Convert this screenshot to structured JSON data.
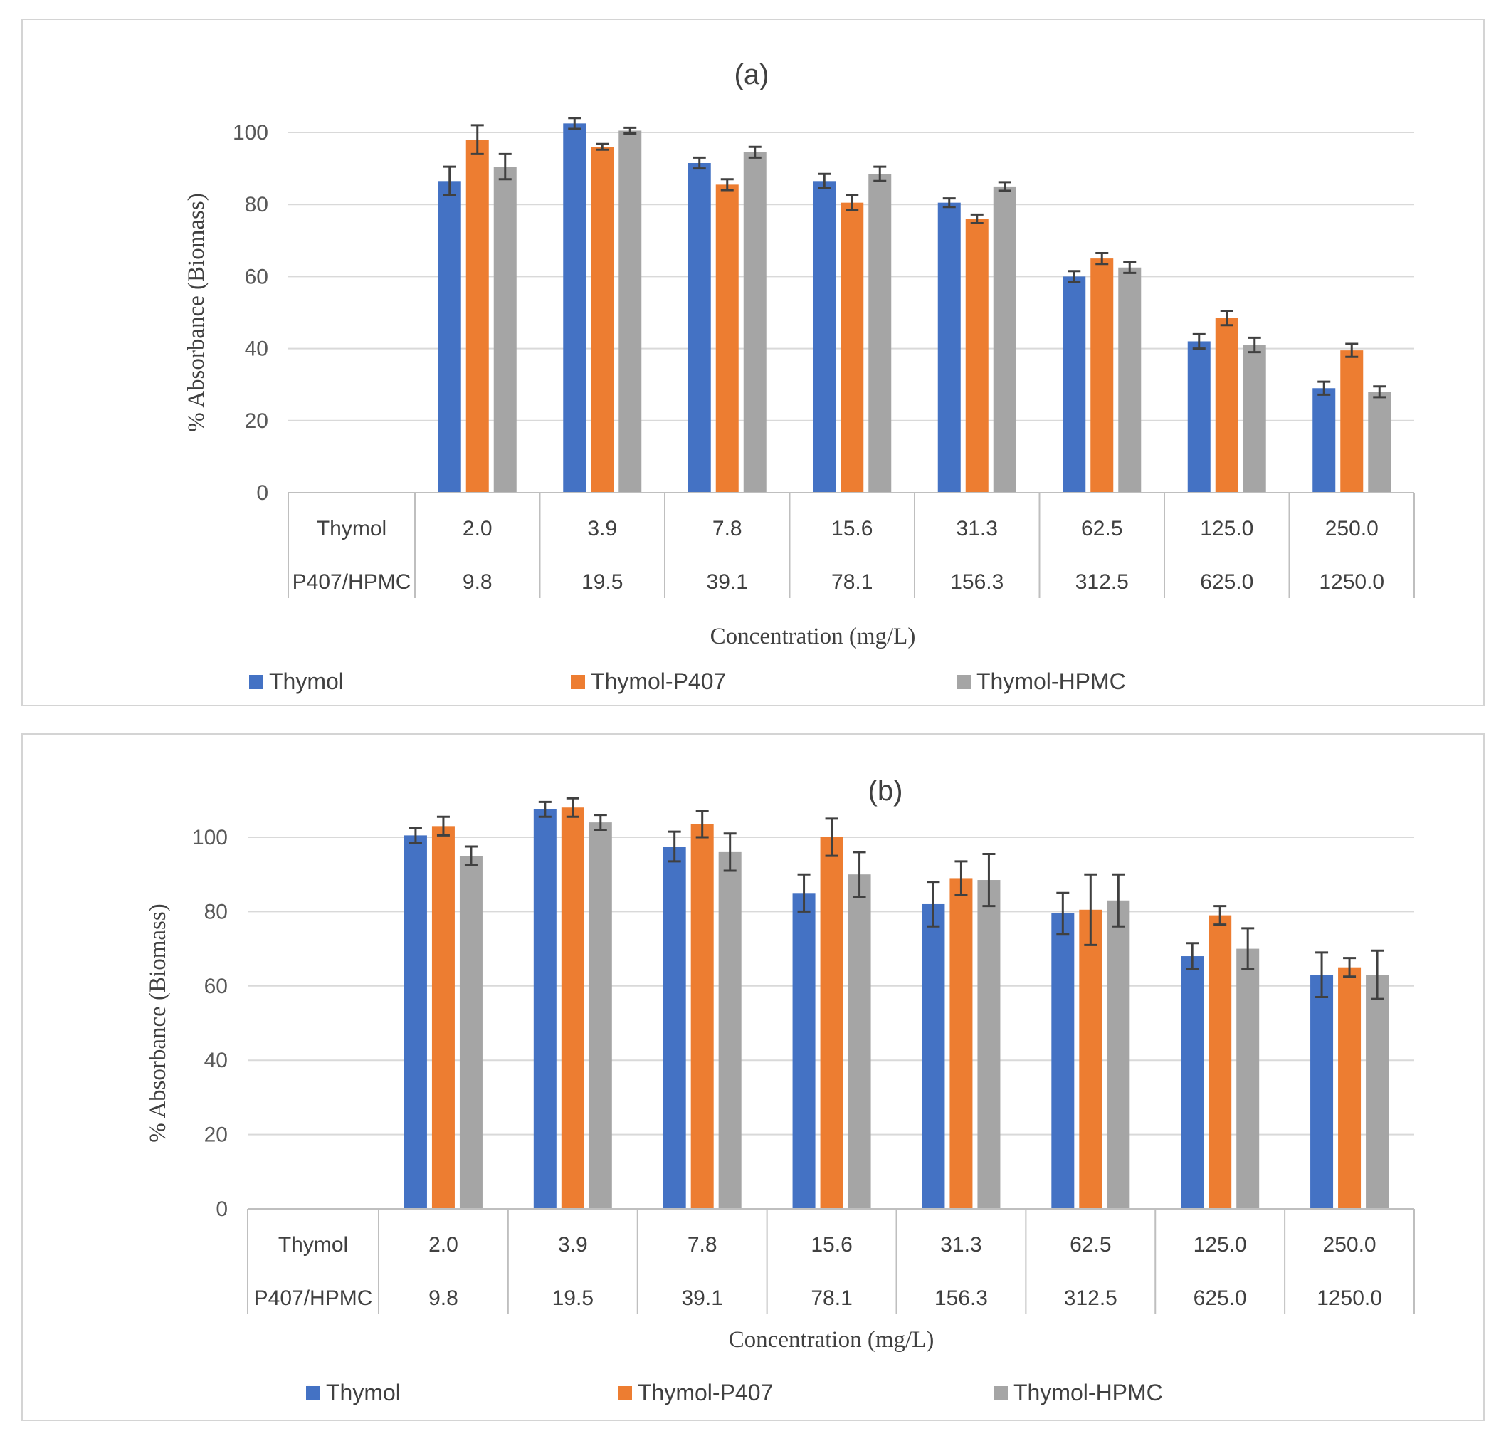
{
  "colors": {
    "thymol": "#4472C4",
    "p407": "#ED7D31",
    "hpmc": "#A5A5A5",
    "grid": "#d9d9d9",
    "error": "#404040"
  },
  "chart_data": [
    {
      "type": "bar",
      "title": "(a)",
      "ylabel": "% Absorbance (Biomass)",
      "xlabel": "Concentration (mg/L)",
      "ylim": [
        0,
        100
      ],
      "yticks": [
        "0",
        "20",
        "40",
        "60",
        "80",
        "100"
      ],
      "row_labels": [
        "Thymol",
        "P407/HPMC"
      ],
      "categories": [
        "2.0",
        "3.9",
        "7.8",
        "15.6",
        "31.3",
        "62.5",
        "125.0",
        "250.0"
      ],
      "categories_secondary": [
        "9.8",
        "19.5",
        "39.1",
        "78.1",
        "156.3",
        "312.5",
        "625.0",
        "1250.0"
      ],
      "legend_position": "bottom",
      "series": [
        {
          "name": "Thymol",
          "values": [
            86.5,
            102.5,
            91.5,
            86.5,
            80.5,
            60.0,
            42.0,
            29.0
          ],
          "errors": [
            4.0,
            1.5,
            1.5,
            2.0,
            1.2,
            1.5,
            2.0,
            1.8
          ]
        },
        {
          "name": "Thymol-P407",
          "values": [
            98.0,
            96.0,
            85.5,
            80.5,
            76.0,
            65.0,
            48.5,
            39.5
          ],
          "errors": [
            4.0,
            0.8,
            1.5,
            2.0,
            1.2,
            1.5,
            2.0,
            1.8
          ]
        },
        {
          "name": "Thymol-HPMC",
          "values": [
            90.5,
            100.5,
            94.5,
            88.5,
            85.0,
            62.5,
            41.0,
            28.0
          ],
          "errors": [
            3.5,
            0.8,
            1.5,
            2.0,
            1.2,
            1.5,
            2.0,
            1.5
          ]
        }
      ]
    },
    {
      "type": "bar",
      "title": "(b)",
      "ylabel": "% Absorbance (Biomass)",
      "xlabel": "Concentration (mg/L)",
      "ylim": [
        0,
        100
      ],
      "yticks": [
        "0",
        "20",
        "40",
        "60",
        "80",
        "100"
      ],
      "row_labels": [
        "Thymol",
        "P407/HPMC"
      ],
      "categories": [
        "2.0",
        "3.9",
        "7.8",
        "15.6",
        "31.3",
        "62.5",
        "125.0",
        "250.0"
      ],
      "categories_secondary": [
        "9.8",
        "19.5",
        "39.1",
        "78.1",
        "156.3",
        "312.5",
        "625.0",
        "1250.0"
      ],
      "legend_position": "bottom",
      "series": [
        {
          "name": "Thymol",
          "values": [
            100.5,
            107.5,
            97.5,
            85.0,
            82.0,
            79.5,
            68.0,
            63.0
          ],
          "errors": [
            2.0,
            2.0,
            4.0,
            5.0,
            6.0,
            5.5,
            3.5,
            6.0
          ]
        },
        {
          "name": "Thymol-P407",
          "values": [
            103.0,
            108.0,
            103.5,
            100.0,
            89.0,
            80.5,
            79.0,
            65.0
          ],
          "errors": [
            2.5,
            2.5,
            3.5,
            5.0,
            4.5,
            9.5,
            2.5,
            2.5
          ]
        },
        {
          "name": "Thymol-HPMC",
          "values": [
            95.0,
            104.0,
            96.0,
            90.0,
            88.5,
            83.0,
            70.0,
            63.0
          ],
          "errors": [
            2.5,
            2.0,
            5.0,
            6.0,
            7.0,
            7.0,
            5.5,
            6.5
          ]
        }
      ]
    }
  ]
}
